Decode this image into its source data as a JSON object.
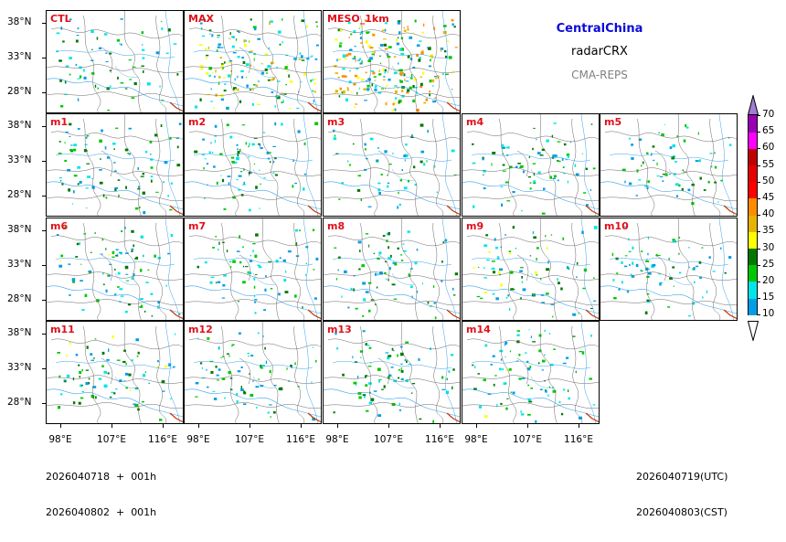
{
  "header": {
    "region": "CentralChina",
    "variable": "radarCRX",
    "system": "CMA-REPS",
    "region_color": "#0a0ad8",
    "system_color": "#808080"
  },
  "panels": [
    {
      "label": "CTL",
      "density": 0.35
    },
    {
      "label": "MAX",
      "density": 0.8
    },
    {
      "label": "MESO_1km",
      "density": 1.0
    },
    {
      "label": "m1",
      "density": 0.4
    },
    {
      "label": "m2",
      "density": 0.4
    },
    {
      "label": "m3",
      "density": 0.35
    },
    {
      "label": "m4",
      "density": 0.4
    },
    {
      "label": "m5",
      "density": 0.3
    },
    {
      "label": "m6",
      "density": 0.45
    },
    {
      "label": "m7",
      "density": 0.4
    },
    {
      "label": "m8",
      "density": 0.4
    },
    {
      "label": "m9",
      "density": 0.5
    },
    {
      "label": "m10",
      "density": 0.35
    },
    {
      "label": "m11",
      "density": 0.45
    },
    {
      "label": "m12",
      "density": 0.4
    },
    {
      "label": "m13",
      "density": 0.4
    },
    {
      "label": "m14",
      "density": 0.45
    }
  ],
  "axes": {
    "lat_labels": [
      "38°N",
      "33°N",
      "28°N"
    ],
    "lon_labels": [
      "98°E",
      "107°E",
      "116°E"
    ]
  },
  "colorbar": {
    "levels": [
      "10",
      "15",
      "20",
      "25",
      "30",
      "35",
      "40",
      "45",
      "50",
      "55",
      "60",
      "65",
      "70"
    ],
    "colors": [
      "#009ee6",
      "#00e5e5",
      "#00c800",
      "#007800",
      "#ffff00",
      "#e6b400",
      "#ff8c00",
      "#ff0000",
      "#e60000",
      "#c00000",
      "#ff00ff",
      "#9a00b4",
      "#a07ed2"
    ],
    "under_color": "#ffffff",
    "over_color": "#a07ed2"
  },
  "legend_colors": {
    "label": "#e0101b",
    "river": "#3aa0e8",
    "border": "#555555"
  },
  "footer": {
    "left_line1": "2026040718  +  001h",
    "left_line2": "2026040802  +  001h",
    "right_line1": "2026040719(UTC)",
    "right_line2": "2026040803(CST)"
  }
}
